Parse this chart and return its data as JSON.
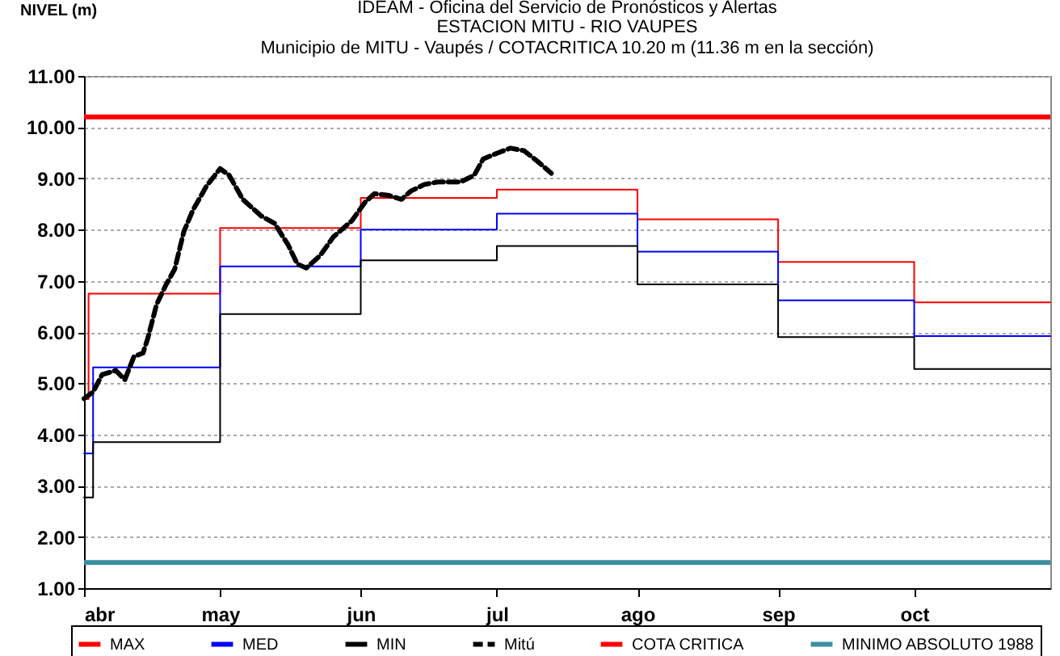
{
  "chart_data": {
    "type": "step",
    "title": "IDEAM - Oficina del Servicio de Pronósticos y Alertas",
    "subtitle": "ESTACION MITU - RIO VAUPES\nMunicipio de MITU - Vaupés / COTACRITICA 10.20 m (11.36 m en la sección)",
    "ylabel": "NIVEL (m)",
    "xlim": [
      "--04-01",
      "--10-31"
    ],
    "xticks": [
      {
        "value": "--04-01",
        "label": "abr"
      },
      {
        "value": "--05-01",
        "label": "may"
      },
      {
        "value": "--06-01",
        "label": "jun"
      },
      {
        "value": "--07-01",
        "label": "jul"
      },
      {
        "value": "--08-01",
        "label": "ago"
      },
      {
        "value": "--09-01",
        "label": "sep"
      },
      {
        "value": "--10-01",
        "label": "oct"
      }
    ],
    "ylim": [
      1,
      11
    ],
    "yticks": [
      {
        "value": 1,
        "label": "1.00"
      },
      {
        "value": 2,
        "label": "2.00"
      },
      {
        "value": 3,
        "label": "3.00"
      },
      {
        "value": 4,
        "label": "4.00"
      },
      {
        "value": 5,
        "label": "5.00"
      },
      {
        "value": 6,
        "label": "6.00"
      },
      {
        "value": 7,
        "label": "7.00"
      },
      {
        "value": 8,
        "label": "8.00"
      },
      {
        "value": 9,
        "label": "9.00"
      },
      {
        "value": 10,
        "label": "10.00"
      },
      {
        "value": 11,
        "label": "11.00"
      }
    ],
    "grid": "y",
    "legend": "bottom",
    "series": [
      {
        "name": "MAX",
        "color": "#ff0000",
        "x": [
          "--04-01",
          "--04-02",
          "--05-01",
          "--06-01",
          "--07-01",
          "--08-01",
          "--09-01",
          "--10-01",
          "--10-31"
        ],
        "values": [
          4.69,
          6.75,
          8.03,
          8.62,
          8.78,
          8.2,
          7.37,
          6.58,
          6.58
        ]
      },
      {
        "name": "MED",
        "color": "#0000ff",
        "x": [
          "--04-01",
          "--04-03",
          "--05-01",
          "--06-01",
          "--07-01",
          "--08-01",
          "--09-01",
          "--10-01",
          "--10-31"
        ],
        "values": [
          3.63,
          5.31,
          7.28,
          8.0,
          8.31,
          7.57,
          6.62,
          5.92,
          5.92
        ]
      },
      {
        "name": "MIN",
        "color": "#000000",
        "x": [
          "--04-01",
          "--04-03",
          "--05-01",
          "--06-01",
          "--07-01",
          "--08-01",
          "--09-01",
          "--10-01",
          "--10-31"
        ],
        "values": [
          2.77,
          3.85,
          6.35,
          7.4,
          7.68,
          6.93,
          5.9,
          5.28,
          5.28
        ]
      },
      {
        "name": "Mitú",
        "color": "#000000",
        "type": "line",
        "line_style": "dashed",
        "x": [
          "--04-01",
          "--04-03",
          "--04-05",
          "--04-08",
          "--04-10",
          "--04-12",
          "--04-14",
          "--04-15",
          "--04-17",
          "--04-19",
          "--04-21",
          "--04-23",
          "--04-25",
          "--04-28",
          "--05-01",
          "--05-03",
          "--05-06",
          "--05-10",
          "--05-13",
          "--05-16",
          "--05-18",
          "--05-20",
          "--05-23",
          "--05-26",
          "--05-30",
          "--06-02",
          "--06-04",
          "--06-07",
          "--06-10",
          "--06-12",
          "--06-15",
          "--06-18",
          "--06-23",
          "--06-26",
          "--06-28",
          "--07-01",
          "--07-04",
          "--07-07",
          "--07-10",
          "--07-13"
        ],
        "values": [
          4.7,
          4.83,
          5.17,
          5.25,
          5.07,
          5.52,
          5.59,
          5.86,
          6.54,
          6.91,
          7.23,
          7.96,
          8.38,
          8.85,
          9.19,
          9.06,
          8.59,
          8.27,
          8.12,
          7.7,
          7.33,
          7.25,
          7.49,
          7.86,
          8.17,
          8.54,
          8.7,
          8.67,
          8.59,
          8.75,
          8.88,
          8.93,
          8.93,
          9.06,
          9.38,
          9.49,
          9.59,
          9.54,
          9.33,
          9.1
        ]
      }
    ],
    "ref_lines": [
      {
        "axis": "y",
        "value": 10.2,
        "label": "COTA CRITICA",
        "color": "#ff0000"
      },
      {
        "axis": "y",
        "value": 1.5,
        "label": "MINIMO ABSOLUTO 1988",
        "color": "#3a8fa0"
      }
    ]
  }
}
